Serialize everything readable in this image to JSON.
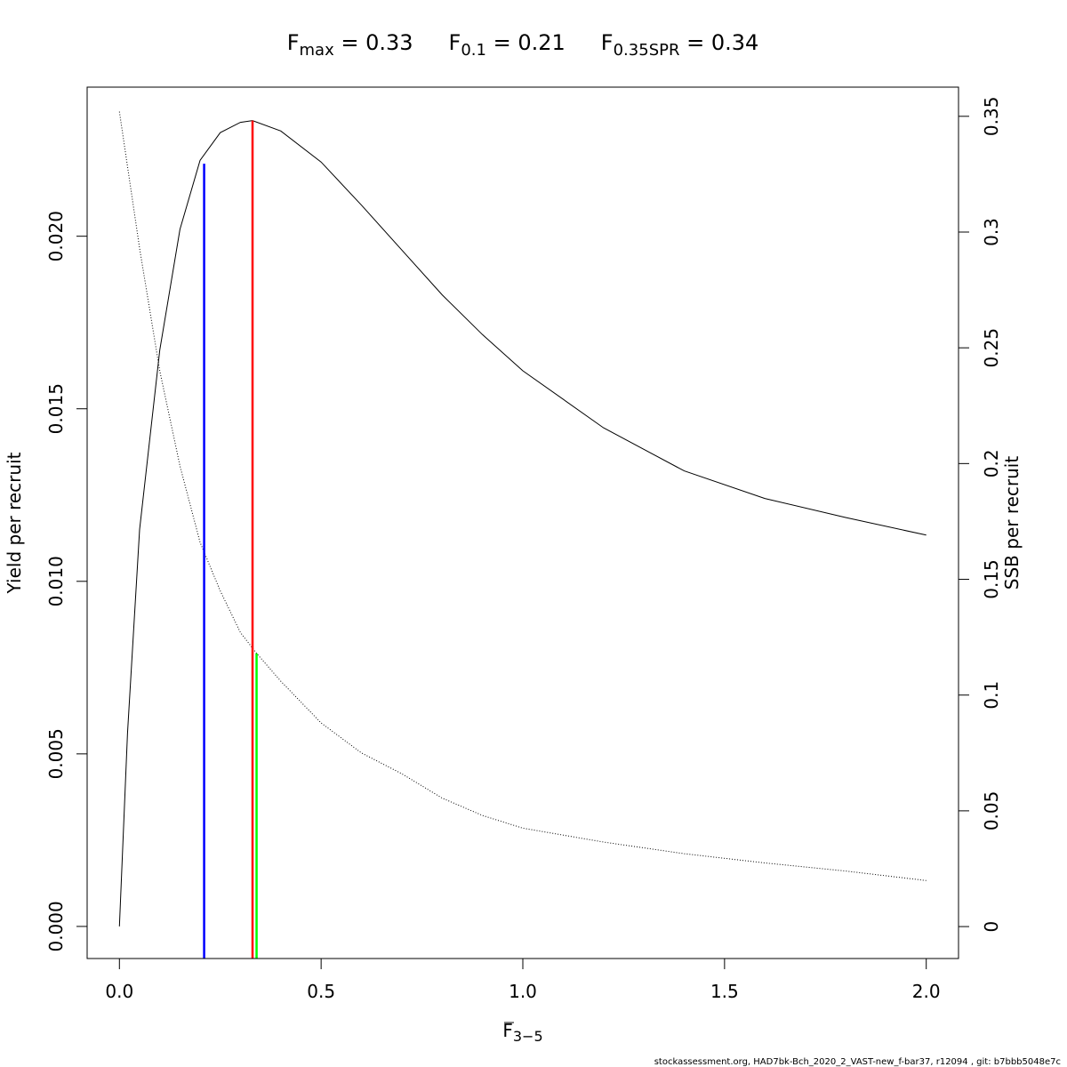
{
  "title": {
    "parts": [
      {
        "base": "F",
        "sub": "max",
        "value": " = 0.33"
      },
      {
        "base": "F",
        "sub": "0.1",
        "value": " = 0.21"
      },
      {
        "base": "F",
        "sub": "0.35SPR",
        "value": " = 0.34"
      }
    ]
  },
  "footer": "stockassessment.org, HAD7bk-Bch_2020_2_VAST-new_f-bar37, r12094 , git: b7bbb5048e7c",
  "chart_data": {
    "type": "line",
    "xlabel": {
      "base": "F",
      "sub": "3−5"
    },
    "ylabel_left": "Yield per recruit",
    "ylabel_right": "SSB per recruit",
    "xlim": [
      -0.08,
      2.08
    ],
    "ylim_left": [
      -0.00093,
      0.02432
    ],
    "ylim_right": [
      -0.0138,
      0.3626
    ],
    "x_ticks": [
      0,
      0.5,
      1,
      1.5,
      2
    ],
    "x_tick_labels": [
      "0.0",
      "0.5",
      "1.0",
      "1.5",
      "2.0"
    ],
    "y_left_ticks": [
      0,
      0.005,
      0.01,
      0.015,
      0.02
    ],
    "y_left_tick_labels": [
      "0.000",
      "0.005",
      "0.010",
      "0.015",
      "0.020"
    ],
    "y_right_ticks": [
      0,
      0.05,
      0.1,
      0.15,
      0.2,
      0.25,
      0.3,
      0.35
    ],
    "y_right_tick_labels": [
      "0",
      "0.05",
      "0.1",
      "0.15",
      "0.2",
      "0.25",
      "0.3",
      "0.35"
    ],
    "grid": false,
    "series": [
      {
        "axis": "left",
        "line_style": "solid",
        "color": "#000000",
        "points": [
          [
            0,
            0
          ],
          [
            0.02,
            0.0056
          ],
          [
            0.05,
            0.0115
          ],
          [
            0.1,
            0.0167
          ],
          [
            0.15,
            0.0202
          ],
          [
            0.2,
            0.0222
          ],
          [
            0.25,
            0.023
          ],
          [
            0.3,
            0.0233
          ],
          [
            0.33,
            0.02335
          ],
          [
            0.4,
            0.02305
          ],
          [
            0.5,
            0.02215
          ],
          [
            0.6,
            0.0209
          ],
          [
            0.7,
            0.0196
          ],
          [
            0.8,
            0.0183
          ],
          [
            0.9,
            0.01715
          ],
          [
            1.0,
            0.0161
          ],
          [
            1.2,
            0.01445
          ],
          [
            1.4,
            0.0132
          ],
          [
            1.6,
            0.0124
          ],
          [
            1.8,
            0.01185
          ],
          [
            2.0,
            0.01134
          ]
        ]
      },
      {
        "axis": "right",
        "line_style": "dotted",
        "color": "#000000",
        "points": [
          [
            0,
            0.352
          ],
          [
            0.05,
            0.293
          ],
          [
            0.1,
            0.24
          ],
          [
            0.15,
            0.199
          ],
          [
            0.2,
            0.166
          ],
          [
            0.25,
            0.145
          ],
          [
            0.3,
            0.127
          ],
          [
            0.34,
            0.118
          ],
          [
            0.4,
            0.106
          ],
          [
            0.5,
            0.088
          ],
          [
            0.6,
            0.075
          ],
          [
            0.7,
            0.066
          ],
          [
            0.8,
            0.0555
          ],
          [
            0.9,
            0.048
          ],
          [
            1.0,
            0.0425
          ],
          [
            1.2,
            0.0365
          ],
          [
            1.4,
            0.0315
          ],
          [
            1.6,
            0.0275
          ],
          [
            1.8,
            0.024
          ],
          [
            2.0,
            0.0199
          ]
        ]
      }
    ],
    "reference_lines": [
      {
        "name": "F0.1",
        "x": 0.21,
        "axis": "left",
        "y_top": 0.0221,
        "color": "#0000ff"
      },
      {
        "name": "Fmax",
        "x": 0.33,
        "axis": "left",
        "y_top": 0.02335,
        "color": "#ff0000"
      },
      {
        "name": "F0.35SPR",
        "x": 0.34,
        "axis": "right",
        "y_top": 0.118,
        "color": "#00ff00"
      }
    ]
  }
}
